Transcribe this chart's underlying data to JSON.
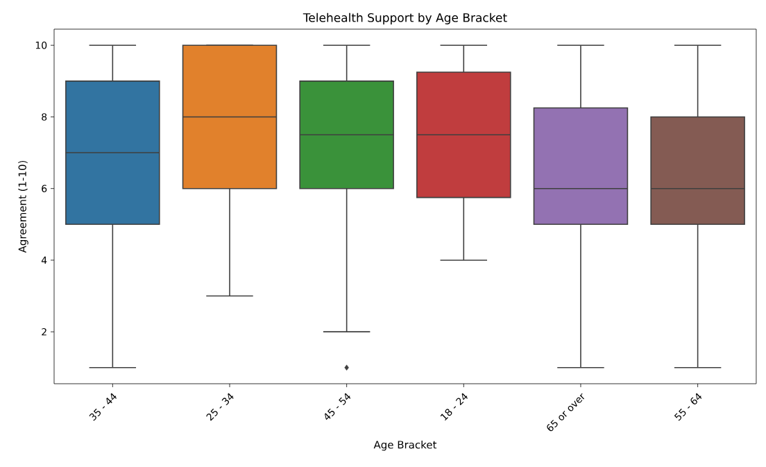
{
  "chart_data": {
    "type": "box",
    "title": "Telehealth Support by Age Bracket",
    "xlabel": "Age Bracket",
    "ylabel": "Agreement (1-10)",
    "categories": [
      "35 - 44",
      "25 - 34",
      "45 - 54",
      "18 - 24",
      "65 or over",
      "55 - 64"
    ],
    "colors": [
      "#3274a1",
      "#e1812c",
      "#3a923a",
      "#c03d3e",
      "#9372b2",
      "#845b53"
    ],
    "boxes": [
      {
        "low": 1,
        "q1": 5,
        "median": 7,
        "q3": 9,
        "high": 10
      },
      {
        "low": 3,
        "q1": 6,
        "median": 8,
        "q3": 10,
        "high": 10
      },
      {
        "low": 2,
        "q1": 6,
        "median": 7.5,
        "q3": 9,
        "high": 10,
        "outliers": [
          1
        ]
      },
      {
        "low": 4,
        "q1": 5.75,
        "median": 7.5,
        "q3": 9.25,
        "high": 10
      },
      {
        "low": 1,
        "q1": 5,
        "median": 6,
        "q3": 8.25,
        "high": 10
      },
      {
        "low": 1,
        "q1": 5,
        "median": 6,
        "q3": 8,
        "high": 10
      }
    ],
    "ylim": [
      0.55,
      10.45
    ],
    "yticks": [
      2,
      4,
      6,
      8,
      10
    ]
  }
}
